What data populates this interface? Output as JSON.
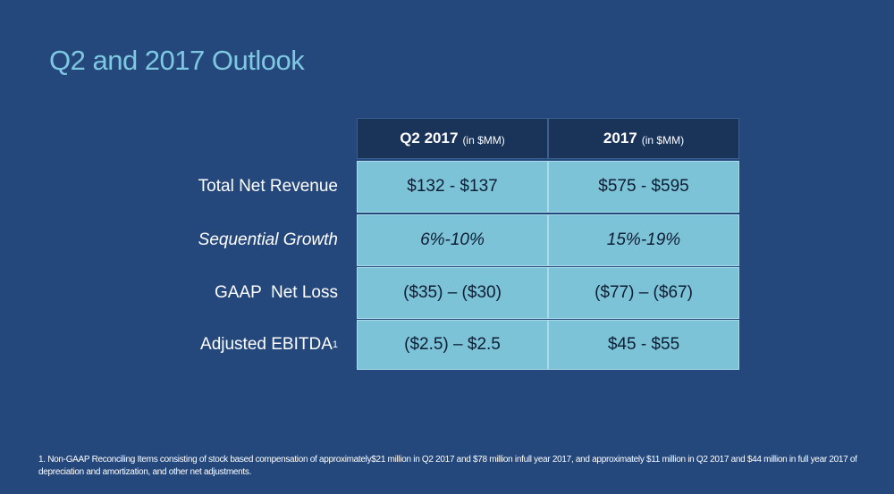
{
  "header": {
    "title": "Q2 and 2017 Outlook"
  },
  "table": {
    "columns": [
      {
        "main": "Q2 2017",
        "unit": "(in $MM)"
      },
      {
        "main": "2017",
        "unit": "(in $MM)"
      }
    ],
    "rows": [
      {
        "label": "Total Net Revenue",
        "italic": false,
        "values": [
          "$132 - $137",
          "$575 - $595"
        ]
      },
      {
        "label": "Sequential Growth",
        "italic": true,
        "values": [
          "6%-10%",
          "15%-19%"
        ]
      },
      {
        "label": "GAAP  Net Loss",
        "italic": false,
        "values": [
          "($35) – ($30)",
          "($77) – ($67)"
        ]
      },
      {
        "label": "Adjusted EBITDA",
        "sup": "1",
        "italic": false,
        "values": [
          "($2.5) – $2.5",
          "$45 - $55"
        ]
      }
    ]
  },
  "footnote": "1. Non-GAAP Reconciling Items consisting  of stock based compensation of approximately$21 million in Q2 2017 and $78 million infull year 2017, and approximately $11 million in Q2 2017 and $44 million in full year 2017 of depreciation and amortization, and other net adjustments."
}
